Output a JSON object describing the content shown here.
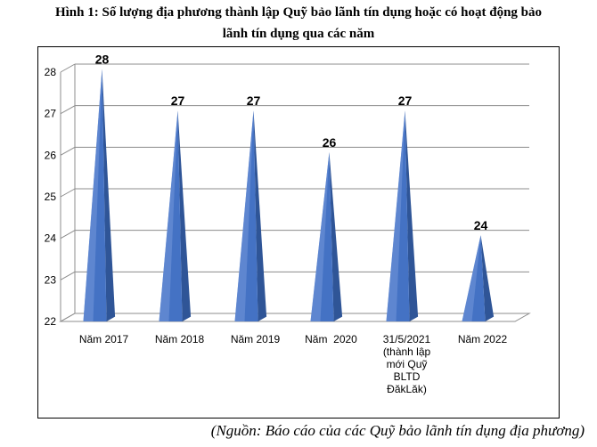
{
  "title_lines": [
    "Hình 1: Số lượng địa phương thành lập Quỹ bảo lãnh tín dụng hoặc có hoạt động bảo",
    "lãnh tín dụng qua các năm"
  ],
  "source": "(Nguồn: Báo cáo của các Quỹ bảo lãnh tín dụng địa phương)",
  "colors": {
    "bar": "#4472c4",
    "bar_dark": "#2f5597",
    "bar_light": "#6f95d8",
    "grid": "#8c8c8c"
  },
  "chart_data": {
    "type": "bar",
    "shape": "3d-pyramid",
    "categories": [
      [
        "Năm 2017"
      ],
      [
        "Năm 2018"
      ],
      [
        "Năm 2019"
      ],
      [
        "Năm  2020"
      ],
      [
        "31/5/2021",
        "(thành lập",
        "mới Quỹ",
        "BLTD",
        "ĐăkLăk)"
      ],
      [
        "Năm 2022"
      ]
    ],
    "values": [
      28,
      27,
      27,
      26,
      27,
      24
    ],
    "ylim": [
      22,
      28
    ],
    "yticks": [
      "22",
      "23",
      "24",
      "25",
      "26",
      "27",
      "28"
    ],
    "grid": true,
    "legend": "none",
    "data_labels": [
      "28",
      "27",
      "27",
      "26",
      "27",
      "24"
    ]
  }
}
